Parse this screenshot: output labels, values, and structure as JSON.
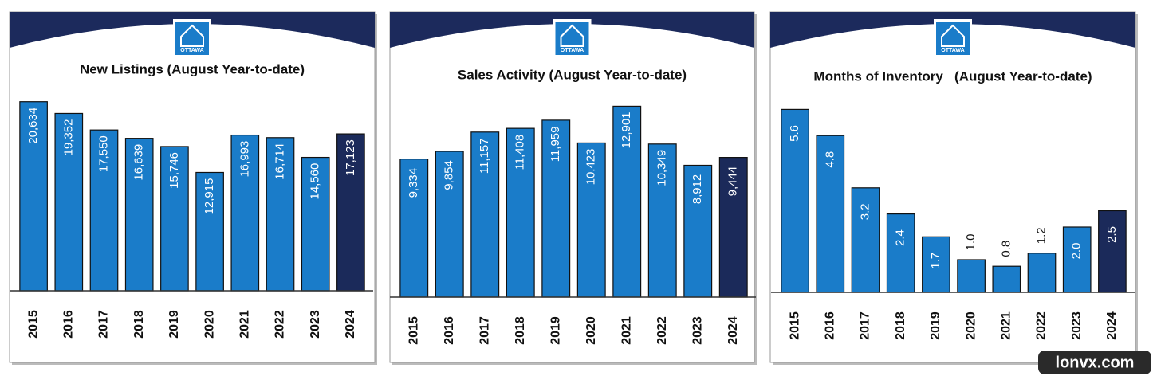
{
  "chart_data": [
    {
      "type": "bar",
      "title": "New Listings (August Year-to-date)",
      "categories": [
        "2015",
        "2016",
        "2017",
        "2018",
        "2019",
        "2020",
        "2021",
        "2022",
        "2023",
        "2024"
      ],
      "values": [
        20634,
        19352,
        17550,
        16639,
        15746,
        12915,
        16993,
        16714,
        14560,
        17123
      ],
      "value_labels": [
        "20,634",
        "19,352",
        "17,550",
        "16,639",
        "15,746",
        "12,915",
        "16,993",
        "16,714",
        "14,560",
        "17,123"
      ],
      "colors": [
        "#1a7cc9",
        "#1a7cc9",
        "#1a7cc9",
        "#1a7cc9",
        "#1a7cc9",
        "#1a7cc9",
        "#1a7cc9",
        "#1a7cc9",
        "#1a7cc9",
        "#1b2a5a"
      ],
      "ylim": [
        0,
        22000
      ]
    },
    {
      "type": "bar",
      "title": "Sales Activity (August Year-to-date)",
      "categories": [
        "2015",
        "2016",
        "2017",
        "2018",
        "2019",
        "2020",
        "2021",
        "2022",
        "2023",
        "2024"
      ],
      "values": [
        9334,
        9854,
        11157,
        11408,
        11959,
        10423,
        12901,
        10349,
        8912,
        9444
      ],
      "value_labels": [
        "9,334",
        "9,854",
        "11,157",
        "11,408",
        "11,959",
        "10,423",
        "12,901",
        "10,349",
        "8,912",
        "9,444"
      ],
      "colors": [
        "#1a7cc9",
        "#1a7cc9",
        "#1a7cc9",
        "#1a7cc9",
        "#1a7cc9",
        "#1a7cc9",
        "#1a7cc9",
        "#1a7cc9",
        "#1a7cc9",
        "#1b2a5a"
      ],
      "ylim": [
        0,
        14000
      ]
    },
    {
      "type": "bar",
      "title": "Months of Inventory   (August Year-to-date)",
      "categories": [
        "2015",
        "2016",
        "2017",
        "2018",
        "2019",
        "2020",
        "2021",
        "2022",
        "2023",
        "2024"
      ],
      "values": [
        5.6,
        4.8,
        3.2,
        2.4,
        1.7,
        1.0,
        0.8,
        1.2,
        2.0,
        2.5
      ],
      "value_labels": [
        "5.6",
        "4.8",
        "3.2",
        "2.4",
        "1.7",
        "1.0",
        "0.8",
        "1.2",
        "2.0",
        "2.5"
      ],
      "colors": [
        "#1a7cc9",
        "#1a7cc9",
        "#1a7cc9",
        "#1a7cc9",
        "#1a7cc9",
        "#1a7cc9",
        "#1a7cc9",
        "#1a7cc9",
        "#1a7cc9",
        "#1b2a5a"
      ],
      "ylim": [
        0,
        6
      ]
    }
  ],
  "logo_text": "OTTAWA",
  "watermark": "lonvx.com"
}
